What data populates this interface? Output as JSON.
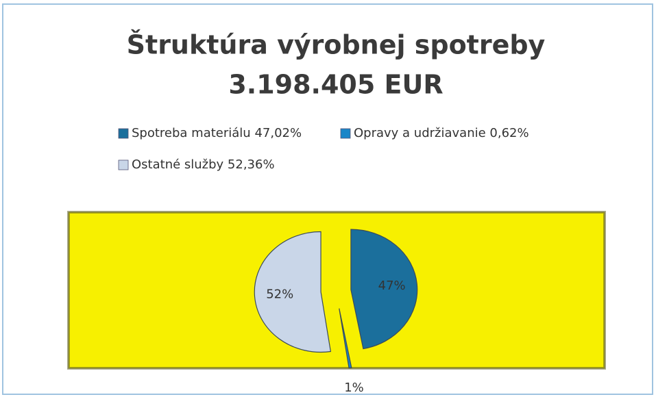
{
  "chart_data": {
    "type": "pie",
    "title": "Štruktúra výrobnej spotreby",
    "subtitle": "3.198.405 EUR",
    "categories": [
      "Spotreba materiálu 47,02%",
      "Opravy a udržiavanie 0,62%",
      "Ostatné služby 52,36%"
    ],
    "values": [
      47.02,
      0.62,
      52.36
    ],
    "value_labels": [
      "47%",
      "1%",
      "52%"
    ],
    "colors": [
      "#1b6f9c",
      "#1a86c8",
      "#c9d6e8"
    ],
    "legend": "top"
  }
}
